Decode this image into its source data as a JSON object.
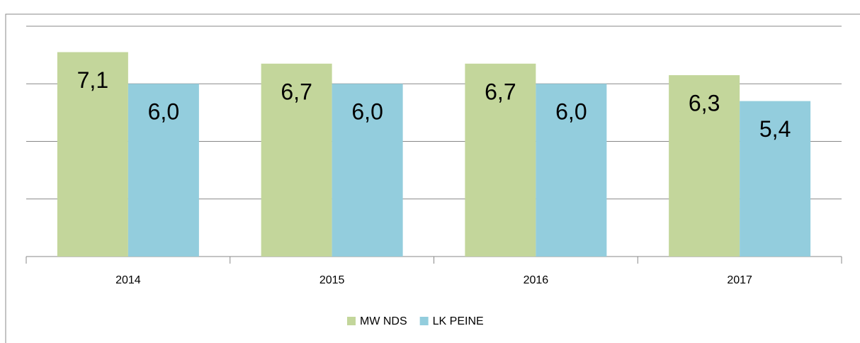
{
  "chart_data": {
    "type": "bar",
    "categories": [
      "2014",
      "2015",
      "2016",
      "2017"
    ],
    "series": [
      {
        "name": "MW NDS",
        "color": "#c3d69b",
        "values": [
          7.1,
          6.7,
          6.7,
          6.3
        ],
        "value_labels": [
          "7,1",
          "6,7",
          "6,7",
          "6,3"
        ]
      },
      {
        "name": "LK PEINE",
        "color": "#93cddd",
        "values": [
          6.0,
          6.0,
          6.0,
          5.4
        ],
        "value_labels": [
          "6,0",
          "6,0",
          "6,0",
          "5,4"
        ]
      }
    ],
    "ylim": [
      0,
      8
    ],
    "yticks": [
      0,
      2,
      4,
      6,
      8
    ],
    "grid": true,
    "legend": "bottom"
  }
}
